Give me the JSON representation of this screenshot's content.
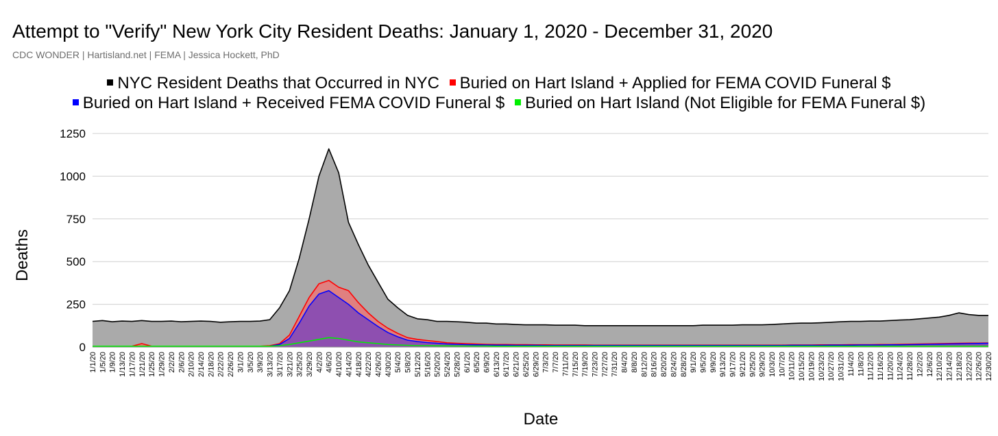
{
  "chart_data": {
    "type": "area",
    "title": "Attempt to \"Verify\" New York City Resident Deaths: January 1, 2020 - December 31, 2020",
    "subtitle": "CDC WONDER | Hartisland.net | FEMA | Jessica Hockett, PhD",
    "xlabel": "Date",
    "ylabel": "Deaths",
    "ylim": [
      0,
      1250
    ],
    "yticks": [
      0,
      250,
      500,
      750,
      1000,
      1250
    ],
    "grid": true,
    "legend_position": "top",
    "x_tick_labels": [
      "1/1/20",
      "1/5/20",
      "1/9/20",
      "1/13/20",
      "1/17/20",
      "1/21/20",
      "1/25/20",
      "1/29/20",
      "2/2/20",
      "2/6/20",
      "2/10/20",
      "2/14/20",
      "2/18/20",
      "2/22/20",
      "2/26/20",
      "3/1/20",
      "3/5/20",
      "3/9/20",
      "3/13/20",
      "3/17/20",
      "3/21/20",
      "3/25/20",
      "3/29/20",
      "4/2/20",
      "4/6/20",
      "4/10/20",
      "4/14/20",
      "4/18/20",
      "4/22/20",
      "4/26/20",
      "4/30/20",
      "5/4/20",
      "5/8/20",
      "5/12/20",
      "5/16/20",
      "5/20/20",
      "5/24/20",
      "5/28/20",
      "6/1/20",
      "6/5/20",
      "6/9/20",
      "6/13/20",
      "6/17/20",
      "6/21/20",
      "6/25/20",
      "6/29/20",
      "7/3/20",
      "7/7/20",
      "7/11/20",
      "7/15/20",
      "7/19/20",
      "7/23/20",
      "7/27/20",
      "7/31/20",
      "8/4/20",
      "8/8/20",
      "8/12/20",
      "8/16/20",
      "8/20/20",
      "8/24/20",
      "8/28/20",
      "9/1/20",
      "9/5/20",
      "9/9/20",
      "9/13/20",
      "9/17/20",
      "9/21/20",
      "9/25/20",
      "9/29/20",
      "10/3/20",
      "10/7/20",
      "10/11/20",
      "10/15/20",
      "10/19/20",
      "10/23/20",
      "10/27/20",
      "10/31/20",
      "11/4/20",
      "11/8/20",
      "11/12/20",
      "11/16/20",
      "11/20/20",
      "11/24/20",
      "11/28/20",
      "12/2/20",
      "12/6/20",
      "12/10/20",
      "12/14/20",
      "12/18/20",
      "12/22/20",
      "12/26/20",
      "12/30/20"
    ],
    "series": [
      {
        "name": "NYC Resident Deaths that Occurred in NYC",
        "color": "#000000",
        "fill": "#aaaaaa",
        "values": [
          150,
          155,
          148,
          152,
          150,
          155,
          150,
          150,
          152,
          148,
          150,
          152,
          150,
          145,
          148,
          150,
          150,
          152,
          160,
          230,
          330,
          520,
          750,
          1000,
          1160,
          1020,
          730,
          600,
          480,
          380,
          280,
          230,
          185,
          165,
          160,
          150,
          150,
          148,
          145,
          140,
          140,
          135,
          135,
          132,
          130,
          130,
          130,
          128,
          128,
          128,
          125,
          125,
          125,
          125,
          125,
          125,
          125,
          125,
          125,
          125,
          125,
          125,
          128,
          128,
          128,
          128,
          130,
          130,
          130,
          132,
          135,
          138,
          140,
          140,
          142,
          145,
          148,
          150,
          150,
          152,
          152,
          155,
          158,
          160,
          165,
          170,
          175,
          185,
          200,
          190,
          185,
          185
        ]
      },
      {
        "name": "Buried on Hart Island + Applied for FEMA COVID Funeral $",
        "color": "#ff0000",
        "fill": "#e08080",
        "values": [
          5,
          5,
          5,
          5,
          5,
          20,
          5,
          5,
          5,
          5,
          5,
          5,
          5,
          5,
          5,
          5,
          5,
          5,
          8,
          20,
          70,
          180,
          290,
          370,
          390,
          350,
          330,
          260,
          200,
          150,
          110,
          80,
          55,
          45,
          38,
          32,
          25,
          22,
          20,
          18,
          16,
          15,
          15,
          14,
          14,
          13,
          13,
          12,
          12,
          12,
          12,
          11,
          11,
          11,
          11,
          11,
          11,
          11,
          11,
          11,
          11,
          11,
          11,
          11,
          11,
          11,
          11,
          11,
          11,
          11,
          11,
          12,
          12,
          12,
          13,
          13,
          13,
          14,
          14,
          14,
          15,
          15,
          16,
          17,
          18,
          19,
          20,
          21,
          22,
          23,
          23,
          24
        ]
      },
      {
        "name": "Buried on Hart Island + Received FEMA COVID Funeral $",
        "color": "#0000ff",
        "fill": "#8e4fb0",
        "values": [
          3,
          3,
          3,
          3,
          3,
          3,
          3,
          3,
          3,
          3,
          3,
          3,
          3,
          3,
          3,
          3,
          3,
          3,
          5,
          15,
          50,
          140,
          240,
          310,
          330,
          290,
          250,
          200,
          160,
          120,
          85,
          60,
          40,
          32,
          26,
          22,
          18,
          16,
          14,
          13,
          12,
          11,
          11,
          10,
          10,
          10,
          9,
          9,
          9,
          9,
          9,
          9,
          9,
          9,
          9,
          9,
          9,
          9,
          9,
          9,
          9,
          9,
          9,
          9,
          9,
          9,
          9,
          9,
          9,
          9,
          9,
          10,
          10,
          10,
          10,
          11,
          11,
          11,
          12,
          12,
          12,
          13,
          13,
          14,
          15,
          16,
          17,
          18,
          19,
          20,
          21,
          22
        ]
      },
      {
        "name": "Buried on Hart Island (Not Eligible for FEMA Funeral $)",
        "color": "#00ee00",
        "fill": "none",
        "values": [
          5,
          5,
          5,
          5,
          5,
          5,
          5,
          5,
          5,
          5,
          5,
          5,
          5,
          5,
          5,
          5,
          5,
          5,
          5,
          8,
          15,
          25,
          35,
          45,
          55,
          50,
          40,
          30,
          25,
          20,
          15,
          12,
          10,
          8,
          8,
          7,
          7,
          6,
          6,
          6,
          6,
          5,
          5,
          5,
          5,
          5,
          5,
          5,
          5,
          5,
          5,
          5,
          5,
          5,
          5,
          5,
          5,
          5,
          5,
          5,
          5,
          5,
          5,
          5,
          5,
          5,
          5,
          5,
          5,
          5,
          5,
          5,
          5,
          5,
          5,
          5,
          5,
          5,
          5,
          5,
          5,
          5,
          5,
          5,
          5,
          5,
          5,
          5,
          5,
          5,
          5,
          5
        ]
      }
    ]
  }
}
